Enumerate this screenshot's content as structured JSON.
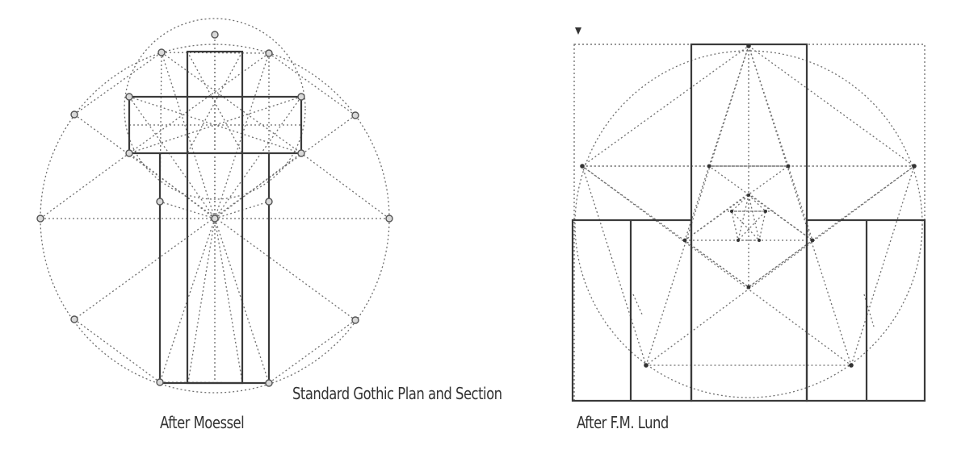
{
  "captions": {
    "left": "After Moessel",
    "center": "Standard Gothic Plan and Section",
    "right": "After F.M. Lund"
  },
  "colors": {
    "line": "#3a3a3a",
    "dotted": "#6e6e6e",
    "background": "#ffffff"
  }
}
